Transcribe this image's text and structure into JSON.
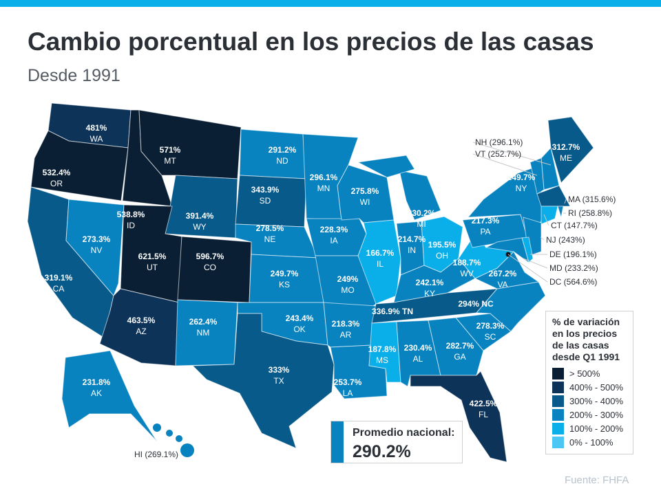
{
  "title": "Cambio porcentual en los precios de las casas",
  "subtitle": "Desde 1991",
  "legend": {
    "title": "% de variación en los precios de las casas desde Q1 1991",
    "items": [
      {
        "label": "> 500%",
        "color": "#0a1f33",
        "min": 500
      },
      {
        "label": "400% - 500%",
        "color": "#0d3358",
        "min": 400
      },
      {
        "label": "300% - 400%",
        "color": "#075a8a",
        "min": 300
      },
      {
        "label": "200% - 300%",
        "color": "#0883c0",
        "min": 200
      },
      {
        "label": "100% - 200%",
        "color": "#0aaee8",
        "min": 100
      },
      {
        "label": "0% - 100%",
        "color": "#4cc6f2",
        "min": 0
      }
    ]
  },
  "national_average": {
    "label": "Promedio nacional:",
    "value": "290.2%"
  },
  "source": "Fuente:  FHFA",
  "states": [
    {
      "abbr": "WA",
      "value": 481
    },
    {
      "abbr": "OR",
      "value": 532.4
    },
    {
      "abbr": "CA",
      "value": 319.1
    },
    {
      "abbr": "NV",
      "value": 273.3
    },
    {
      "abbr": "ID",
      "value": 538.8
    },
    {
      "abbr": "MT",
      "value": 571
    },
    {
      "abbr": "WY",
      "value": 391.4
    },
    {
      "abbr": "UT",
      "value": 621.5
    },
    {
      "abbr": "CO",
      "value": 596.7
    },
    {
      "abbr": "AZ",
      "value": 463.5
    },
    {
      "abbr": "NM",
      "value": 262.4
    },
    {
      "abbr": "ND",
      "value": 291.2
    },
    {
      "abbr": "SD",
      "value": 343.9
    },
    {
      "abbr": "NE",
      "value": 278.5
    },
    {
      "abbr": "KS",
      "value": 249.7
    },
    {
      "abbr": "OK",
      "value": 243.4
    },
    {
      "abbr": "TX",
      "value": 333
    },
    {
      "abbr": "MN",
      "value": 296.1
    },
    {
      "abbr": "IA",
      "value": 228.3
    },
    {
      "abbr": "MO",
      "value": 249
    },
    {
      "abbr": "AR",
      "value": 218.3
    },
    {
      "abbr": "LA",
      "value": 253.7
    },
    {
      "abbr": "WI",
      "value": 275.8
    },
    {
      "abbr": "IL",
      "value": 166.7
    },
    {
      "abbr": "MI",
      "value": 230.2
    },
    {
      "abbr": "IN",
      "value": 214.7
    },
    {
      "abbr": "OH",
      "value": 195.5
    },
    {
      "abbr": "KY",
      "value": 242.1
    },
    {
      "abbr": "TN",
      "value": 336.9
    },
    {
      "abbr": "MS",
      "value": 187.8
    },
    {
      "abbr": "AL",
      "value": 230.4
    },
    {
      "abbr": "GA",
      "value": 282.7
    },
    {
      "abbr": "FL",
      "value": 422.5
    },
    {
      "abbr": "SC",
      "value": 278.3
    },
    {
      "abbr": "NC",
      "value": 294
    },
    {
      "abbr": "VA",
      "value": 267.2
    },
    {
      "abbr": "WV",
      "value": 188.7
    },
    {
      "abbr": "PA",
      "value": 217.3
    },
    {
      "abbr": "NY",
      "value": 249.7
    },
    {
      "abbr": "ME",
      "value": 312.7
    },
    {
      "abbr": "AK",
      "value": 231.8
    },
    {
      "abbr": "NH",
      "value": 296.1,
      "display": "NH (296.1%)"
    },
    {
      "abbr": "VT",
      "value": 252.7,
      "display": "VT (252.7%)"
    },
    {
      "abbr": "MA",
      "value": 315.6,
      "display": "MA (315.6%)"
    },
    {
      "abbr": "RI",
      "value": 258.8,
      "display": "RI (258.8%)"
    },
    {
      "abbr": "CT",
      "value": 147.7,
      "display": "CT (147.7%)"
    },
    {
      "abbr": "NJ",
      "value": 243,
      "display": "NJ  (243%)"
    },
    {
      "abbr": "DE",
      "value": 196.1,
      "display": "DE (196.1%)"
    },
    {
      "abbr": "MD",
      "value": 233.2,
      "display": "MD (233.2%)"
    },
    {
      "abbr": "DC",
      "value": 564.6,
      "display": "DC (564.6%)"
    },
    {
      "abbr": "HI",
      "value": 269.1,
      "display": "HI (269.1%)"
    }
  ]
}
